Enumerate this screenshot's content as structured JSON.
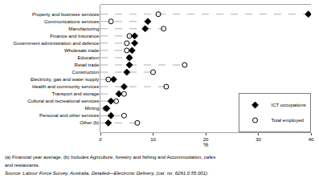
{
  "chart_data": {
    "type": "dot",
    "x_label": "%",
    "categories": [
      "Property and business services",
      "Communications services",
      "Manufacturing",
      "Finance and Insurance",
      "Government administration and defence",
      "Wholesale trade",
      "Education",
      "Retail trade",
      "Construction",
      "Electricity, gas and water supply",
      "Health and community services",
      "Transport and storage",
      "Cultural and recreational services",
      "Mining",
      "Personal and other services",
      "Other (b)"
    ],
    "series": [
      {
        "name": "ICT occupations",
        "color": "#000000",
        "marker": "diamond",
        "values": [
          39.5,
          9.0,
          8.5,
          6.5,
          6.5,
          6.0,
          5.5,
          5.5,
          5.0,
          2.5,
          4.5,
          3.5,
          2.0,
          1.2,
          2.0,
          1.5
        ]
      },
      {
        "name": "Total employed",
        "color": "#000000",
        "marker": "circle-open",
        "values": [
          11.0,
          2.0,
          12.0,
          5.5,
          5.0,
          5.0,
          5.5,
          16.0,
          10.0,
          1.5,
          12.5,
          4.5,
          3.0,
          1.0,
          4.5,
          7.0
        ]
      }
    ],
    "xlim": [
      0,
      40
    ],
    "xticks": [
      0,
      10,
      20,
      30,
      40
    ],
    "line_style": "dashed",
    "grid": false,
    "legend": "lower right",
    "annotations": [
      "(a) Financial year average. (b) Includes Agriculture, forestry and fishing and Accommodation, cafes",
      "and restaurants.",
      "Source: Labour Force Survey, Australia, Detailed—Electronic Delivery, (cat. no. 6291.0.55.001)."
    ]
  }
}
